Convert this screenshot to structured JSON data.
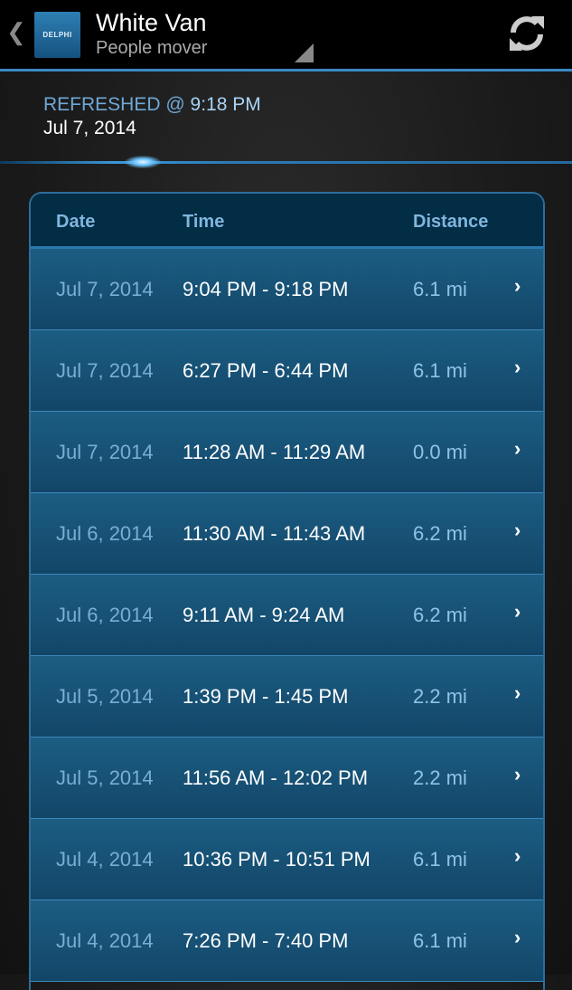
{
  "header": {
    "back_icon": "chevron-left-icon",
    "logo_text": "DELPHI",
    "title": "White Van",
    "subtitle": "People mover",
    "refresh_icon": "refresh-icon"
  },
  "status": {
    "refreshed_label": "REFRESHED @",
    "refreshed_time": "9:18 PM",
    "refreshed_date": "Jul 7, 2014"
  },
  "table": {
    "columns": [
      "Date",
      "Time",
      "Distance"
    ],
    "rows": [
      {
        "date": "Jul 7, 2014",
        "time": "9:04 PM - 9:18 PM",
        "distance": "6.1 mi"
      },
      {
        "date": "Jul 7, 2014",
        "time": "6:27 PM - 6:44 PM",
        "distance": "6.1 mi"
      },
      {
        "date": "Jul 7, 2014",
        "time": "11:28 AM - 11:29 AM",
        "distance": "0.0 mi"
      },
      {
        "date": "Jul 6, 2014",
        "time": "11:30 AM - 11:43 AM",
        "distance": "6.2 mi"
      },
      {
        "date": "Jul 6, 2014",
        "time": "9:11 AM - 9:24 AM",
        "distance": "6.2 mi"
      },
      {
        "date": "Jul 5, 2014",
        "time": "1:39 PM - 1:45 PM",
        "distance": "2.2 mi"
      },
      {
        "date": "Jul 5, 2014",
        "time": "11:56 AM - 12:02 PM",
        "distance": "2.2 mi"
      },
      {
        "date": "Jul 4, 2014",
        "time": "10:36 PM - 10:51 PM",
        "distance": "6.1 mi"
      },
      {
        "date": "Jul 4, 2014",
        "time": "7:26 PM - 7:40 PM",
        "distance": "6.1 mi"
      }
    ],
    "chevron": "›"
  },
  "colors": {
    "accent": "#3a8ac4",
    "header_bg": "#000000",
    "row_bg": "#1c5d83"
  }
}
